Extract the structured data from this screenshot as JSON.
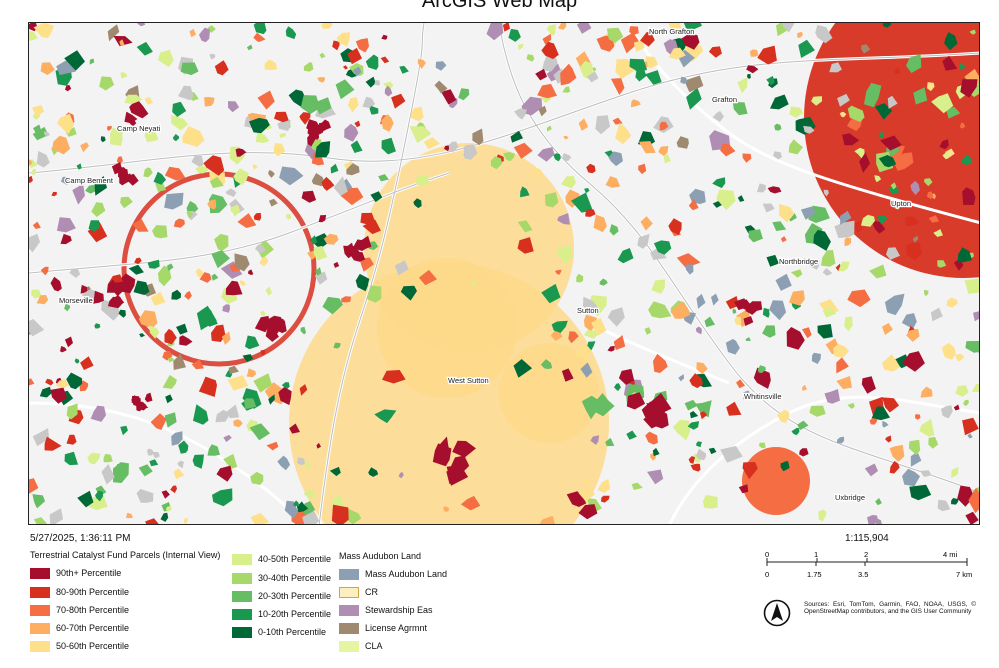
{
  "title": "ArcGIS Web Map",
  "places": [
    "North Grafton",
    "Grafton",
    "Camp Neyati",
    "Camp Bement",
    "Upton",
    "Northbridge",
    "Morseville",
    "Sutton",
    "West Sutton",
    "Whitinsville",
    "Uxbridge"
  ],
  "timestamp": "5/27/2025, 1:36:11 PM",
  "scale_text": "1:115,904",
  "legend": {
    "section1_title": "Terrestrial Catalyst Fund Parcels (Internal View)",
    "col1": [
      {
        "label": "90th+ Percentile",
        "color": "#a50f2d"
      },
      {
        "label": "80-90th Percentile",
        "color": "#d7301f"
      },
      {
        "label": "70-80th Percentile",
        "color": "#f46d43"
      },
      {
        "label": "60-70th Percentile",
        "color": "#fdae61"
      },
      {
        "label": "50-60th Percentile",
        "color": "#fee08b"
      }
    ],
    "col2": [
      {
        "label": "40-50th Percentile",
        "color": "#d9ef8b"
      },
      {
        "label": "30-40th Percentile",
        "color": "#a6d96a"
      },
      {
        "label": "20-30th Percentile",
        "color": "#66bd63"
      },
      {
        "label": "10-20th Percentile",
        "color": "#1a9850"
      },
      {
        "label": "0-10th Percentile",
        "color": "#006837"
      }
    ],
    "section2_title": "Mass Audubon Land",
    "col3": [
      {
        "label": "Mass Audubon Land",
        "color": "#8da0b3"
      },
      {
        "label": "CR",
        "color": "#fdeec0",
        "outline": "#d4a545"
      },
      {
        "label": "Stewardship Eas",
        "color": "#b08eb3"
      },
      {
        "label": "License Agrmnt",
        "color": "#a08a6f"
      },
      {
        "label": "CLA",
        "color": "#e5f5a0"
      }
    ]
  },
  "scalebar": {
    "mi_ticks": [
      "0",
      "1",
      "2",
      "4 mi"
    ],
    "km_ticks": [
      "0",
      "1.75",
      "3.5",
      "7 km"
    ]
  },
  "north_arrow_icon": "north-arrow-icon",
  "sources": "Sources: Esri, TomTom, Garmin, FAO, NOAA, USGS, © OpenStreetMap contributors, and the GIS User Community"
}
